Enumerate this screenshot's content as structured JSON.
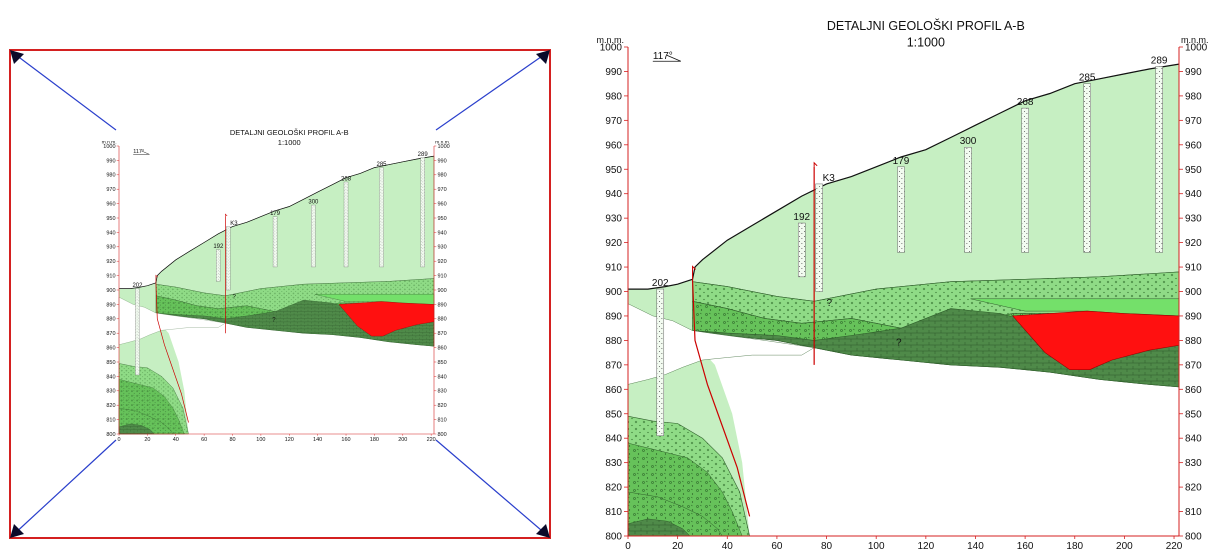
{
  "profile": {
    "title": "DETALJNI GEOLOŠKI PROFIL A-B",
    "scale": "1:1000",
    "axis_unit": "m.n.m.",
    "azimuth": "117°",
    "y_ticks": [
      800,
      810,
      820,
      830,
      840,
      850,
      860,
      870,
      880,
      890,
      900,
      910,
      920,
      930,
      940,
      950,
      960,
      970,
      980,
      990,
      1000
    ],
    "x_ticks": [
      0,
      20,
      40,
      60,
      80,
      100,
      120,
      140,
      160,
      180,
      200,
      220
    ],
    "boreholes": [
      {
        "label": "202",
        "x": 13,
        "top": 901,
        "bottom": 841
      },
      {
        "label": "192",
        "x": 70,
        "top": 928,
        "bottom": 906
      },
      {
        "label": "K3",
        "x": 77,
        "top": 944,
        "bottom": 900
      },
      {
        "label": "179",
        "x": 110,
        "top": 951,
        "bottom": 916
      },
      {
        "label": "300",
        "x": 137,
        "top": 959,
        "bottom": 916
      },
      {
        "label": "268",
        "x": 160,
        "top": 975,
        "bottom": 916
      },
      {
        "label": "285",
        "x": 185,
        "top": 985,
        "bottom": 916
      },
      {
        "label": "289",
        "x": 214,
        "top": 992,
        "bottom": 916
      }
    ],
    "question_marks": [
      "?",
      "?"
    ]
  },
  "colors": {
    "frame": "#d42020",
    "diagonal": "#2a3fcc",
    "arrow": "#0a0a2a",
    "layer_light": "#c6efc2",
    "layer_mid": "#8fdb86",
    "layer_green": "#66c25a",
    "layer_dark": "#4f8a49",
    "fault": "#cc0000",
    "red_body": "#ff1010"
  }
}
